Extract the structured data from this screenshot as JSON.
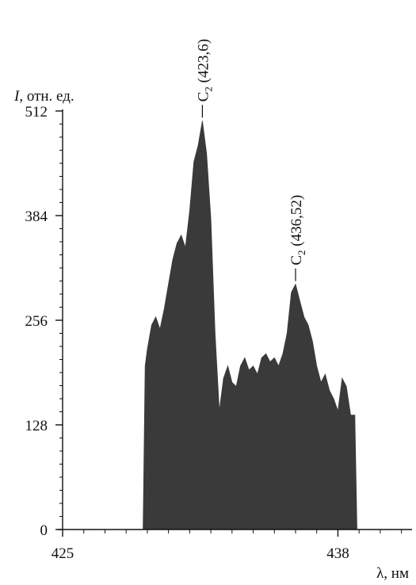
{
  "chart_data": {
    "type": "area",
    "title": "",
    "ylabel_italic": "I",
    "ylabel_rest": ", отн. ед.",
    "xlabel": "λ, нм",
    "xlim": [
      425,
      441.5
    ],
    "ylim": [
      0,
      520
    ],
    "yticks": [
      0,
      128,
      256,
      384,
      512
    ],
    "xticks": [
      425,
      438
    ],
    "grid": false,
    "fill_color": "#3a3a3a",
    "series": [
      {
        "x": [
          428.8,
          428.9,
          429.0,
          429.2,
          429.4,
          429.6,
          429.8,
          430.0,
          430.2,
          430.4,
          430.6,
          430.8,
          431.0,
          431.2,
          431.4,
          431.6,
          431.8,
          432.0,
          432.2,
          432.4,
          432.6,
          432.8,
          433.0,
          433.2,
          433.4,
          433.6,
          433.8,
          434.0,
          434.2,
          434.4,
          434.6,
          434.8,
          435.0,
          435.2,
          435.4,
          435.6,
          435.8,
          436.0,
          436.2,
          436.4,
          436.6,
          436.8,
          437.0,
          437.2,
          437.4,
          437.6,
          437.8,
          438.0,
          438.2,
          438.4,
          438.6,
          438.8,
          438.9
        ],
        "values": [
          0,
          200,
          220,
          250,
          260,
          245,
          270,
          300,
          330,
          350,
          360,
          345,
          390,
          450,
          470,
          500,
          460,
          380,
          240,
          145,
          185,
          200,
          180,
          175,
          200,
          210,
          195,
          200,
          190,
          210,
          215,
          205,
          210,
          200,
          215,
          240,
          290,
          300,
          280,
          260,
          250,
          230,
          200,
          180,
          190,
          170,
          160,
          145,
          185,
          175,
          140,
          140,
          0
        ]
      }
    ],
    "annotations": [
      {
        "sub": "2",
        "wavelength": "(423,6)",
        "x": 431.6,
        "y": 500
      },
      {
        "sub": "2",
        "wavelength": "(436,52)",
        "x": 436.0,
        "y": 300
      }
    ],
    "annotation_letter": "C"
  }
}
